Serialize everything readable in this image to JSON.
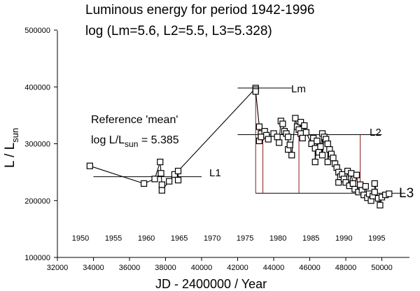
{
  "chart_data": {
    "type": "scatter",
    "title": "Luminous energy  for period 1942-1996",
    "subtitle": "log (Lm=5.6, L2=5.5, L3=5.328)",
    "xlabel": "JD - 2400000 /  Year",
    "ylabel": "L / L",
    "ylabel_sub": "sun",
    "xlim": [
      32000,
      52000
    ],
    "ylim": [
      100000,
      500000
    ],
    "x_ticks": [
      32000,
      34000,
      36000,
      38000,
      40000,
      42000,
      44000,
      46000,
      48000,
      50000
    ],
    "x_tick_labels": [
      "32000",
      "34000",
      "36000",
      "38000",
      "40000",
      "42000",
      "44000",
      "46000",
      "48000",
      "50000"
    ],
    "y_ticks": [
      100000,
      200000,
      300000,
      400000,
      500000
    ],
    "y_tick_labels": [
      "100000",
      "200000",
      "300000",
      "400000",
      "500000"
    ],
    "year_labels": [
      {
        "text": "1950",
        "jd": 33282
      },
      {
        "text": "1955",
        "jd": 35109
      },
      {
        "text": "1960",
        "jd": 36935
      },
      {
        "text": "1965",
        "jd": 38761
      },
      {
        "text": "1970",
        "jd": 40587
      },
      {
        "text": "1975",
        "jd": 42413
      },
      {
        "text": "1980",
        "jd": 44239
      },
      {
        "text": "1985",
        "jd": 46066
      },
      {
        "text": "1990",
        "jd": 47892
      },
      {
        "text": "1995",
        "jd": 49718
      }
    ],
    "annotation_line1": "Reference 'mean'",
    "annotation_line2_main": "log L/L",
    "annotation_line2_sub": "sun",
    "annotation_line2_value": " = 5.385",
    "level_labels": {
      "L1": "L1",
      "Lm": "Lm",
      "L2": "L2",
      "L3": "L3"
    },
    "levels": {
      "L1": {
        "y": 242000,
        "x_range": [
          34000,
          40000
        ]
      },
      "Lm": {
        "y": 398000,
        "x_range": [
          42000,
          45000
        ]
      },
      "L2": {
        "y": 316000,
        "x_range": [
          42000,
          50000
        ]
      },
      "L3": {
        "y": 213000,
        "x_range": [
          43000,
          51300
        ]
      }
    },
    "vertical_markers": [
      {
        "x": 43000,
        "y_top": 398000
      },
      {
        "x": 43400,
        "y_top": 316000
      },
      {
        "x": 45400,
        "y_top": 316000
      },
      {
        "x": 48800,
        "y_top": 316000
      }
    ],
    "marker_color": "#8b1a1a",
    "series": [
      {
        "values": [
          [
            33800,
            261000
          ],
          [
            36800,
            230000
          ],
          [
            37400,
            238000
          ],
          [
            37700,
            268000
          ],
          [
            37750,
            248000
          ],
          [
            37800,
            228000
          ],
          [
            37800,
            218000
          ],
          [
            38200,
            234000
          ],
          [
            38500,
            246000
          ],
          [
            38700,
            236000
          ],
          [
            38700,
            252000
          ],
          [
            43000,
            398000
          ],
          [
            43000,
            395000
          ],
          [
            43000,
            392000
          ],
          [
            43200,
            330000
          ],
          [
            43200,
            305000
          ],
          [
            43300,
            318000
          ],
          [
            43300,
            312000
          ],
          [
            43500,
            322000
          ],
          [
            43600,
            315000
          ],
          [
            43700,
            308000
          ],
          [
            44000,
            318000
          ],
          [
            44200,
            312000
          ],
          [
            44300,
            302000
          ],
          [
            44400,
            340000
          ],
          [
            44500,
            335000
          ],
          [
            44600,
            322000
          ],
          [
            44700,
            318000
          ],
          [
            44800,
            312000
          ],
          [
            44800,
            290000
          ],
          [
            44900,
            298000
          ],
          [
            45000,
            280000
          ],
          [
            45200,
            345000
          ],
          [
            45300,
            330000
          ],
          [
            45400,
            325000
          ],
          [
            45500,
            318000
          ],
          [
            45500,
            338000
          ],
          [
            45600,
            310000
          ],
          [
            45700,
            332000
          ],
          [
            45800,
            320000
          ],
          [
            46100,
            300000
          ],
          [
            46200,
            310000
          ],
          [
            46300,
            292000
          ],
          [
            46300,
            268000
          ],
          [
            46400,
            305000
          ],
          [
            46500,
            285000
          ],
          [
            46600,
            295000
          ],
          [
            46700,
            318000
          ],
          [
            46700,
            280000
          ],
          [
            46800,
            312000
          ],
          [
            46900,
            308000
          ],
          [
            47000,
            300000
          ],
          [
            47000,
            268000
          ],
          [
            47100,
            290000
          ],
          [
            47200,
            282000
          ],
          [
            47300,
            275000
          ],
          [
            47400,
            265000
          ],
          [
            47500,
            258000
          ],
          [
            47600,
            250000
          ],
          [
            47600,
            232000
          ],
          [
            47700,
            242000
          ],
          [
            47800,
            246000
          ],
          [
            47900,
            238000
          ],
          [
            48000,
            232000
          ],
          [
            48100,
            252000
          ],
          [
            48200,
            226000
          ],
          [
            48300,
            248000
          ],
          [
            48400,
            230000
          ],
          [
            48500,
            220000
          ],
          [
            48600,
            245000
          ],
          [
            48700,
            215000
          ],
          [
            48800,
            228000
          ],
          [
            48900,
            218000
          ],
          [
            49000,
            210000
          ],
          [
            49100,
            225000
          ],
          [
            49200,
            205000
          ],
          [
            49300,
            212000
          ],
          [
            49400,
            200000
          ],
          [
            49500,
            208000
          ],
          [
            49600,
            215000
          ],
          [
            49600,
            230000
          ],
          [
            49800,
            204000
          ],
          [
            49900,
            192000
          ],
          [
            50000,
            206000
          ],
          [
            50200,
            210000
          ],
          [
            50400,
            212000
          ]
        ]
      }
    ]
  }
}
